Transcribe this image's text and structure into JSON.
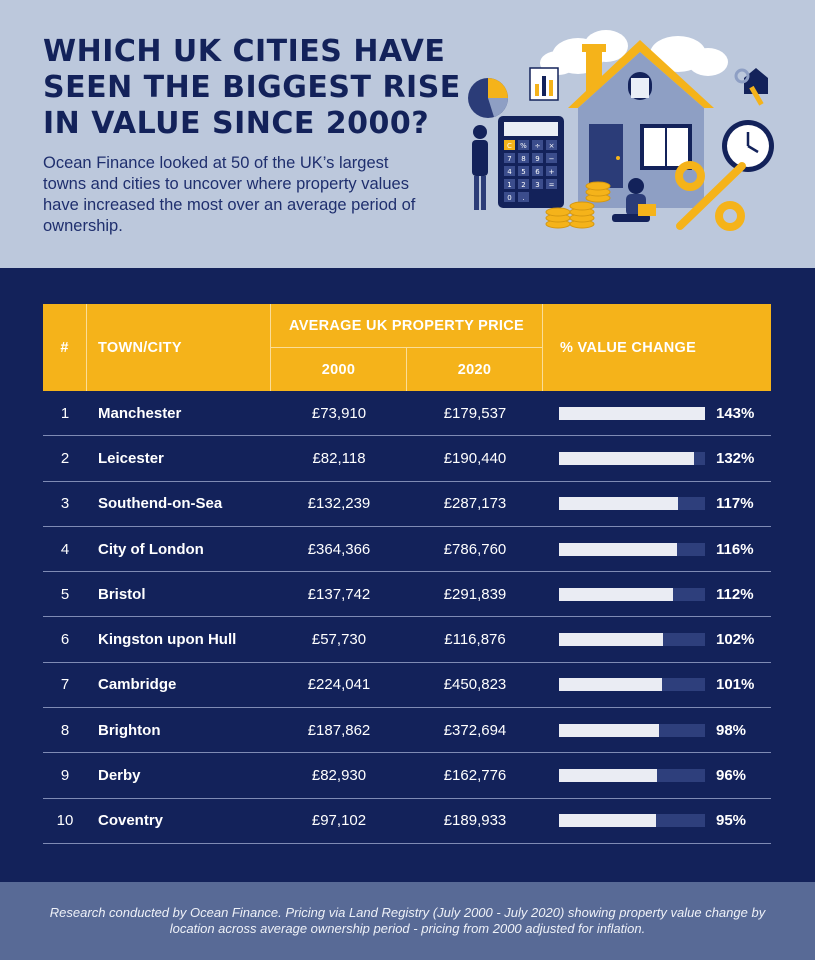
{
  "header": {
    "title_lines": [
      "WHICH UK CITIES HAVE",
      "SEEN THE BIGGEST RISE",
      "IN VALUE SINCE 2000?"
    ],
    "intro": "Ocean Finance looked at 50 of the UK’s largest towns and cities to uncover where property values have increased the most over an average period of ownership.",
    "calculator_keys": [
      "C",
      "%",
      "÷",
      "×",
      "7",
      "8",
      "9",
      "−",
      "4",
      "5",
      "6",
      "+",
      "1",
      "2",
      "3",
      "=",
      "0",
      "."
    ]
  },
  "colors": {
    "navy": "#13225a",
    "header_bg": "#bcc8dc",
    "accent_yellow": "#f5b31a",
    "bar_fill": "#eaecf3",
    "bar_track": "#2e3f7c",
    "footer_bg": "#586a96"
  },
  "icons": [
    "house-icon",
    "calculator-icon",
    "pie-chart-icon",
    "bar-chart-icon",
    "clock-icon",
    "percent-icon",
    "keys-icon",
    "coin-stack-icon",
    "person-icon",
    "cloud-icon"
  ],
  "table": {
    "col_num": "#",
    "col_city": "TOWN/CITY",
    "col_group": "AVERAGE UK PROPERTY PRICE",
    "col_2000": "2000",
    "col_2020": "2020",
    "col_change": "% VALUE CHANGE"
  },
  "chart_data": {
    "type": "table",
    "columns": [
      "#",
      "TOWN/CITY",
      "2000",
      "2020",
      "% VALUE CHANGE"
    ],
    "bar_max": 143,
    "rows": [
      {
        "rank": "1",
        "city": "Manchester",
        "price_2000": "£73,910",
        "price_2020": "£179,537",
        "change": 143,
        "change_label": "143%"
      },
      {
        "rank": "2",
        "city": "Leicester",
        "price_2000": "£82,118",
        "price_2020": "£190,440",
        "change": 132,
        "change_label": "132%"
      },
      {
        "rank": "3",
        "city": "Southend-on-Sea",
        "price_2000": "£132,239",
        "price_2020": "£287,173",
        "change": 117,
        "change_label": "117%"
      },
      {
        "rank": "4",
        "city": "City of London",
        "price_2000": "£364,366",
        "price_2020": "£786,760",
        "change": 116,
        "change_label": "116%"
      },
      {
        "rank": "5",
        "city": "Bristol",
        "price_2000": "£137,742",
        "price_2020": "£291,839",
        "change": 112,
        "change_label": "112%"
      },
      {
        "rank": "6",
        "city": "Kingston upon Hull",
        "price_2000": "£57,730",
        "price_2020": "£116,876",
        "change": 102,
        "change_label": "102%"
      },
      {
        "rank": "7",
        "city": "Cambridge",
        "price_2000": "£224,041",
        "price_2020": "£450,823",
        "change": 101,
        "change_label": "101%"
      },
      {
        "rank": "8",
        "city": "Brighton",
        "price_2000": "£187,862",
        "price_2020": "£372,694",
        "change": 98,
        "change_label": "98%"
      },
      {
        "rank": "9",
        "city": "Derby",
        "price_2000": "£82,930",
        "price_2020": "£162,776",
        "change": 96,
        "change_label": "96%"
      },
      {
        "rank": "10",
        "city": "Coventry",
        "price_2000": "£97,102",
        "price_2020": "£189,933",
        "change": 95,
        "change_label": "95%"
      }
    ]
  },
  "footer": {
    "note": "Research conducted by Ocean Finance. Pricing via Land Registry (July 2000 - July 2020) showing property value change by location across average ownership period - pricing from 2000 adjusted for inflation."
  }
}
